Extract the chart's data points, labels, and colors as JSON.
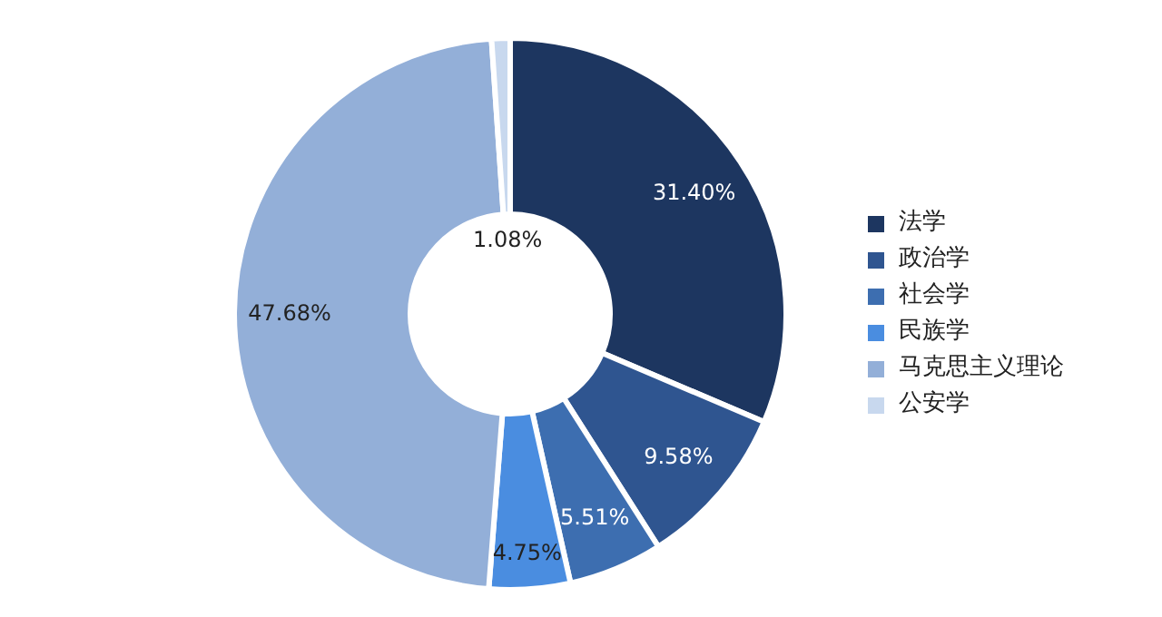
{
  "chart_data": {
    "type": "donut",
    "categories": [
      "法学",
      "政治学",
      "社会学",
      "民族学",
      "马克思主义理论",
      "公安学"
    ],
    "values": [
      31.4,
      9.58,
      5.51,
      4.75,
      47.68,
      1.08
    ],
    "value_labels": [
      "31.40%",
      "9.58%",
      "5.51%",
      "4.75%",
      "47.68%",
      "1.08%"
    ],
    "colors": [
      "#1d3660",
      "#2f5590",
      "#3d6eb0",
      "#4a8de0",
      "#93afd8",
      "#c8d8ee"
    ],
    "legend": "right"
  }
}
